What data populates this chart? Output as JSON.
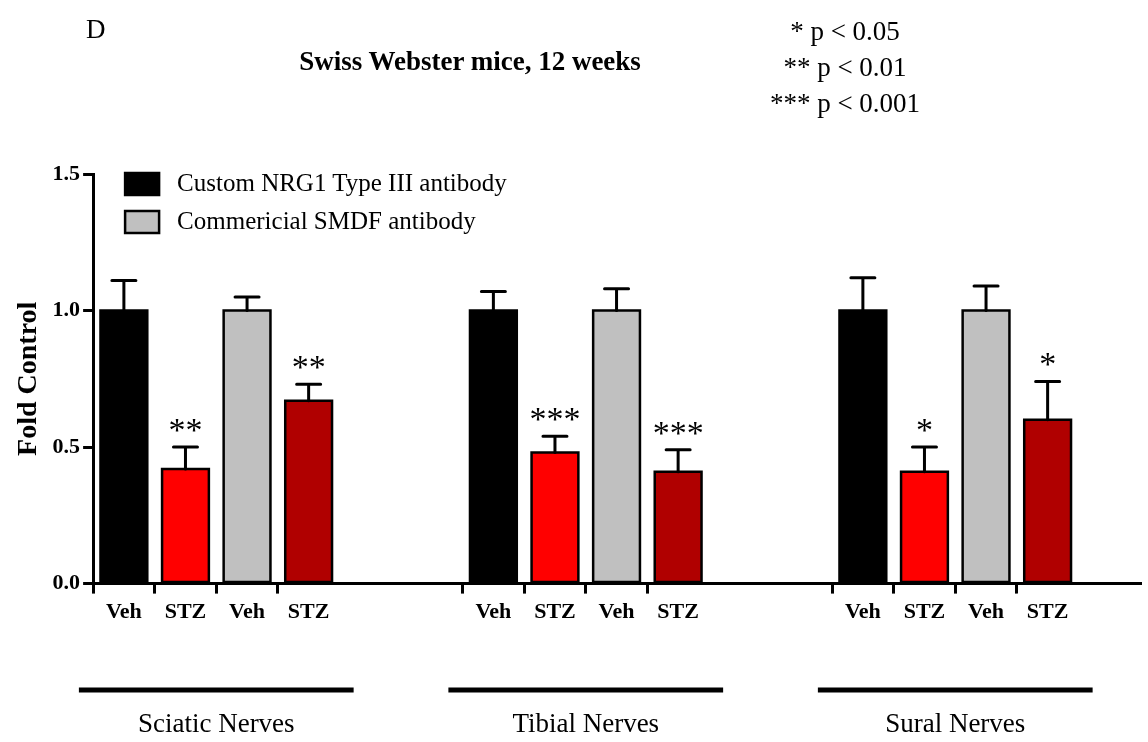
{
  "chart_data": {
    "type": "bar",
    "title": "Swiss Webster mice, 12 weeks",
    "ylabel": "Fold Control",
    "annotations": [
      "D",
      "* p < 0.05",
      "** p < 0.01",
      "*** p < 0.001",
      "Sciatic Nerves",
      "Tibial Nerves",
      "Sural Nerves"
    ],
    "categories": [
      "Veh",
      "STZ",
      "Veh",
      "STZ",
      null,
      null,
      "Veh",
      "STZ",
      "Veh",
      "STZ",
      null,
      null,
      "Veh",
      "STZ",
      "Veh",
      "STZ",
      null
    ],
    "series": [
      {
        "name": "Custom NRG1 Type III antibody",
        "color": "#000000",
        "colors": [
          "#000000",
          "#ff0000",
          null,
          null,
          null,
          null,
          "#000000",
          "#ff0000",
          null,
          null,
          null,
          null,
          "#000000",
          "#ff0000",
          null,
          null,
          null
        ],
        "values": [
          1.0,
          0.42,
          null,
          null,
          null,
          null,
          1.0,
          0.48,
          null,
          null,
          null,
          null,
          1.0,
          0.41,
          null,
          null,
          null
        ],
        "errors": [
          [
            1.0,
            1.11
          ],
          [
            0.42,
            0.5
          ],
          null,
          null,
          null,
          null,
          [
            1.0,
            1.07
          ],
          [
            0.48,
            0.54
          ],
          null,
          null,
          null,
          null,
          [
            1.0,
            1.12
          ],
          [
            0.41,
            0.5
          ],
          null,
          null,
          null
        ],
        "value_labels": [
          null,
          "**",
          null,
          null,
          null,
          null,
          null,
          "***",
          null,
          null,
          null,
          null,
          null,
          "*",
          null,
          null,
          null
        ]
      },
      {
        "name": "Commericial SMDF antibody",
        "color": "#c0c0c0",
        "colors": [
          null,
          null,
          "#c0c0c0",
          "#b00000",
          null,
          null,
          null,
          null,
          "#c0c0c0",
          "#b00000",
          null,
          null,
          null,
          null,
          "#c0c0c0",
          "#b00000",
          null
        ],
        "values": [
          null,
          null,
          1.0,
          0.67,
          null,
          null,
          null,
          null,
          1.0,
          0.41,
          null,
          null,
          null,
          null,
          1.0,
          0.6,
          null
        ],
        "errors": [
          null,
          null,
          [
            1.0,
            1.05
          ],
          [
            0.67,
            0.73
          ],
          null,
          null,
          null,
          null,
          [
            1.0,
            1.08
          ],
          [
            0.41,
            0.49
          ],
          null,
          null,
          null,
          null,
          [
            1.0,
            1.09
          ],
          [
            0.6,
            0.74
          ],
          null
        ],
        "value_labels": [
          null,
          null,
          null,
          "**",
          null,
          null,
          null,
          null,
          null,
          "***",
          null,
          null,
          null,
          null,
          null,
          "*",
          null
        ]
      }
    ],
    "ylim": [
      0,
      1.5
    ],
    "yticks": [
      {
        "value": 0,
        "label": "0.0"
      },
      {
        "value": 0.5,
        "label": "0.5"
      },
      {
        "value": 1,
        "label": "1.0"
      },
      {
        "value": 1.5,
        "label": "1.5"
      }
    ],
    "grid": false,
    "legend": "top left"
  }
}
